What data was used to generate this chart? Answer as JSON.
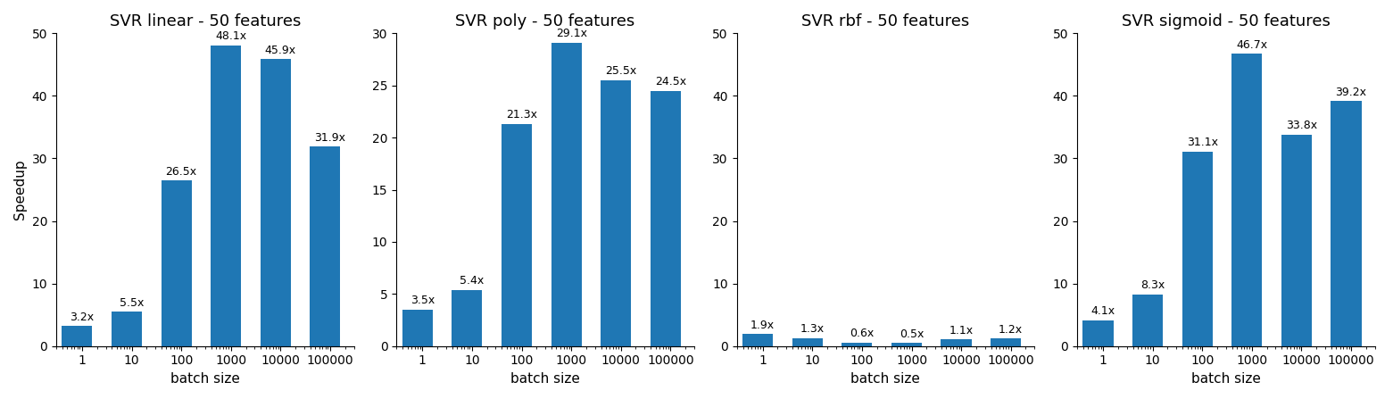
{
  "charts": [
    {
      "title": "SVR linear - 50 features",
      "categories": [
        "1",
        "10",
        "100",
        "1000",
        "10000",
        "100000"
      ],
      "x_values": [
        1,
        10,
        100,
        1000,
        10000,
        100000
      ],
      "values": [
        3.2,
        5.5,
        26.5,
        48.1,
        45.9,
        31.9
      ],
      "ylim": [
        0,
        50
      ],
      "yticks": [
        0,
        10,
        20,
        30,
        40,
        50
      ]
    },
    {
      "title": "SVR poly - 50 features",
      "categories": [
        "1",
        "10",
        "100",
        "1000",
        "10000",
        "100000"
      ],
      "x_values": [
        1,
        10,
        100,
        1000,
        10000,
        100000
      ],
      "values": [
        3.5,
        5.4,
        21.3,
        29.1,
        25.5,
        24.5
      ],
      "ylim": [
        0,
        30
      ],
      "yticks": [
        0,
        5,
        10,
        15,
        20,
        25,
        30
      ]
    },
    {
      "title": "SVR rbf - 50 features",
      "categories": [
        "1",
        "10",
        "100",
        "1000",
        "10000",
        "100000"
      ],
      "x_values": [
        1,
        10,
        100,
        1000,
        10000,
        100000
      ],
      "values": [
        1.9,
        1.3,
        0.6,
        0.5,
        1.1,
        1.2
      ],
      "ylim": [
        0,
        50
      ],
      "yticks": [
        0,
        10,
        20,
        30,
        40,
        50
      ]
    },
    {
      "title": "SVR sigmoid - 50 features",
      "categories": [
        "1",
        "10",
        "100",
        "1000",
        "10000",
        "100000"
      ],
      "x_values": [
        1,
        10,
        100,
        1000,
        10000,
        100000
      ],
      "values": [
        4.1,
        8.3,
        31.1,
        46.7,
        33.8,
        39.2
      ],
      "ylim": [
        0,
        50
      ],
      "yticks": [
        0,
        10,
        20,
        30,
        40,
        50
      ]
    }
  ],
  "bar_color": "#1f77b4",
  "xlabel": "batch size",
  "ylabel": "Speedup",
  "figsize": [
    15.61,
    4.47
  ],
  "dpi": 100
}
